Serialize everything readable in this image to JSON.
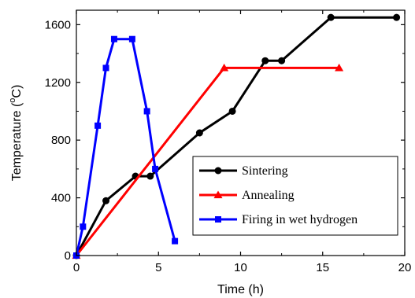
{
  "chart_data": {
    "type": "line",
    "xlabel": "Time (h)",
    "ylabel_main": "Temperature (",
    "ylabel_sup": "o",
    "ylabel_tail": "C)",
    "xlim": [
      0,
      20
    ],
    "ylim": [
      0,
      1700
    ],
    "xticks": [
      0,
      5,
      10,
      15,
      20
    ],
    "yticks": [
      0,
      400,
      800,
      1200,
      1600
    ],
    "xtick_labels": [
      "0",
      "5",
      "10",
      "15",
      "20"
    ],
    "ytick_labels": [
      "0",
      "400",
      "800",
      "1200",
      "1600"
    ],
    "grid": false,
    "legend_position": "lower-right",
    "series": [
      {
        "name": "Sintering",
        "color": "#000000",
        "marker": "circle",
        "x": [
          0,
          1.8,
          3.6,
          4.5,
          7.5,
          9.5,
          11.5,
          12.5,
          15.5,
          19.5
        ],
        "y": [
          0,
          380,
          550,
          550,
          850,
          1000,
          1350,
          1350,
          1650,
          1650
        ]
      },
      {
        "name": "Annealing",
        "color": "#ff0000",
        "marker": "triangle",
        "x": [
          0,
          9,
          16
        ],
        "y": [
          0,
          1300,
          1300
        ]
      },
      {
        "name": "Firing in wet hydrogen",
        "color": "#0000ff",
        "marker": "square",
        "x": [
          0,
          0.4,
          1.3,
          1.8,
          2.3,
          3.4,
          4.3,
          4.8,
          6
        ],
        "y": [
          0,
          200,
          900,
          1300,
          1500,
          1500,
          1000,
          600,
          100
        ]
      }
    ]
  }
}
